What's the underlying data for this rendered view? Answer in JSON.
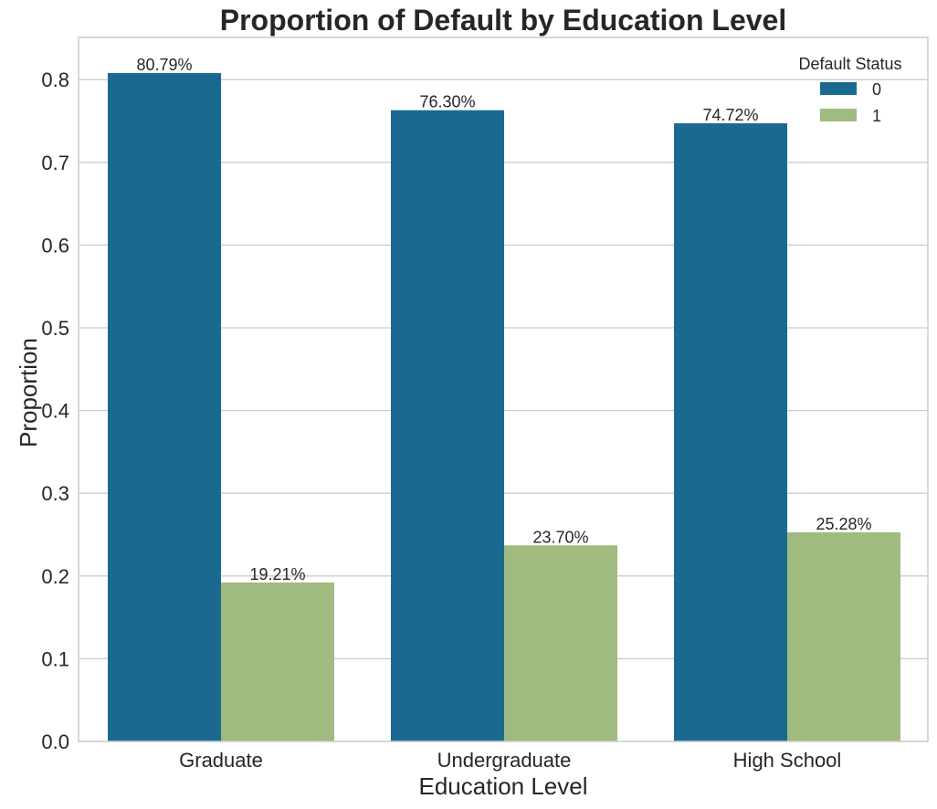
{
  "chart_data": {
    "type": "bar",
    "title": "Proportion of Default by Education Level",
    "xlabel": "Education Level",
    "ylabel": "Proportion",
    "categories": [
      "Graduate",
      "Undergraduate",
      "High School"
    ],
    "series": [
      {
        "name": "0",
        "values": [
          0.8079,
          0.763,
          0.7472
        ],
        "labels": [
          "80.79%",
          "76.30%",
          "74.72%"
        ],
        "color": "#1a6a8f"
      },
      {
        "name": "1",
        "values": [
          0.1921,
          0.237,
          0.2528
        ],
        "labels": [
          "19.21%",
          "23.70%",
          "25.28%"
        ],
        "color": "#a0bb80"
      }
    ],
    "yticks": [
      0.0,
      0.1,
      0.2,
      0.3,
      0.4,
      0.5,
      0.6,
      0.7,
      0.8
    ],
    "ytick_labels": [
      "0.0",
      "0.1",
      "0.2",
      "0.3",
      "0.4",
      "0.5",
      "0.6",
      "0.7",
      "0.8"
    ],
    "ylim": [
      0,
      0.85
    ],
    "grid": true,
    "legend": {
      "title": "Default Status",
      "placement": "top-right"
    }
  }
}
